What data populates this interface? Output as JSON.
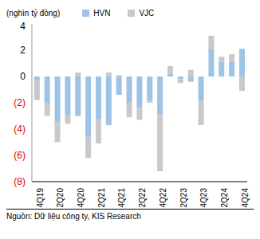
{
  "chart_data": {
    "type": "bar",
    "stacked": true,
    "legend": "top",
    "grid": false,
    "ylabel": "(nghìn tỷ đồng)",
    "annotations": [
      "Nguồn: Dữ liệu công ty, KIS Research"
    ],
    "categories": [
      "4Q19",
      null,
      "2Q20",
      null,
      "4Q20",
      null,
      "2Q21",
      null,
      "4Q21",
      null,
      "2Q22",
      null,
      "4Q22",
      null,
      "2Q23",
      null,
      "4Q23",
      null,
      "2Q24",
      null,
      "4Q24"
    ],
    "series": [
      {
        "name": "HVN",
        "color": "#9dc3e6",
        "values": [
          -0.3,
          -2.0,
          -3.5,
          -3.0,
          -3.0,
          -4.6,
          -3.3,
          -3.7,
          -1.4,
          -2.0,
          -2.4,
          -1.9,
          -2.9,
          0.2,
          -0.2,
          -0.4,
          -1.9,
          2.1,
          1.1,
          1.1,
          2.1
        ]
      },
      {
        "name": "VJC",
        "color": "#c9c9c9",
        "values": [
          -1.5,
          -1.0,
          -1.5,
          -0.6,
          0.3,
          -1.6,
          -1.8,
          0.3,
          0.1,
          -1.1,
          -0.9,
          -0.1,
          -4.3,
          0.6,
          -0.3,
          0.5,
          -1.8,
          1.0,
          0.4,
          0.6,
          -1.1
        ]
      }
    ],
    "ylim": [
      -8,
      4
    ],
    "yticks": [
      {
        "value": -8,
        "label": "(8)"
      },
      {
        "value": -6,
        "label": "(6)"
      },
      {
        "value": -4,
        "label": "(4)"
      },
      {
        "value": -2,
        "label": "(2)"
      },
      0,
      2,
      4
    ]
  }
}
